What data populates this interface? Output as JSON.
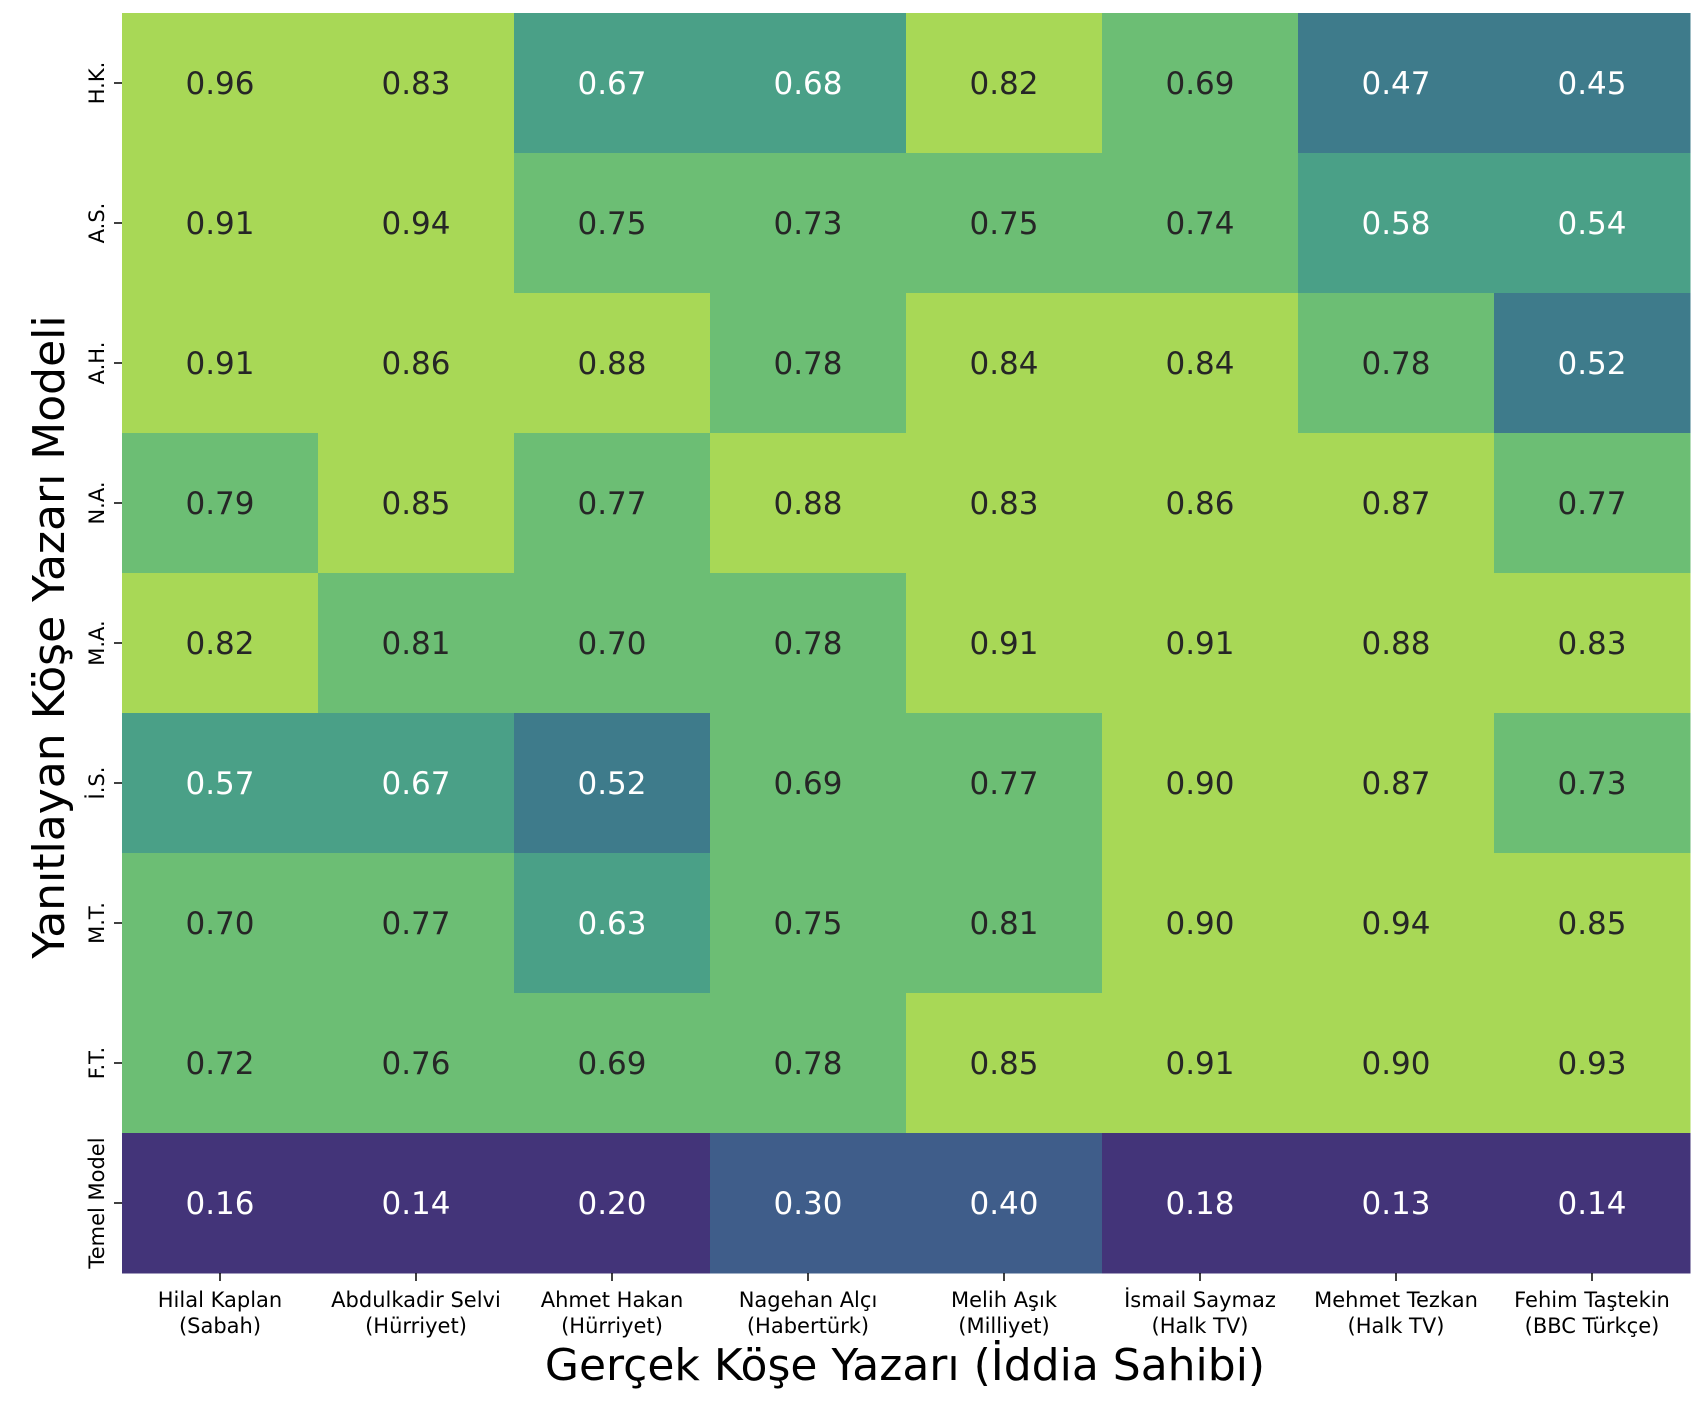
{
  "chart_data": {
    "type": "heatmap",
    "xlabel": "Gerçek Köşe Yazarı (İddia Sahibi)",
    "ylabel": "Yanıtlayan Köşe Yazarı Modeli",
    "x_categories": [
      [
        "Hilal Kaplan",
        "(Sabah)"
      ],
      [
        "Abdulkadir Selvi",
        "(Hürriyet)"
      ],
      [
        "Ahmet Hakan",
        "(Hürriyet)"
      ],
      [
        "Nagehan Alçı",
        "(Habertürk)"
      ],
      [
        "Melih Aşık",
        "(Milliyet)"
      ],
      [
        "İsmail Saymaz",
        "(Halk TV)"
      ],
      [
        "Mehmet Tezkan",
        "(Halk TV)"
      ],
      [
        "Fehim Taştekin",
        "(BBC Türkçe)"
      ]
    ],
    "y_categories": [
      "H.K.",
      "A.S.",
      "A.H.",
      "N.A.",
      "M.A.",
      "İ.S.",
      "M.T.",
      "F.T.",
      "Temel Model"
    ],
    "values": [
      [
        0.96,
        0.83,
        0.67,
        0.68,
        0.82,
        0.69,
        0.47,
        0.45
      ],
      [
        0.91,
        0.94,
        0.75,
        0.73,
        0.75,
        0.74,
        0.58,
        0.54
      ],
      [
        0.91,
        0.86,
        0.88,
        0.78,
        0.84,
        0.84,
        0.78,
        0.52
      ],
      [
        0.79,
        0.85,
        0.77,
        0.88,
        0.83,
        0.86,
        0.87,
        0.77
      ],
      [
        0.82,
        0.81,
        0.7,
        0.78,
        0.91,
        0.91,
        0.88,
        0.83
      ],
      [
        0.57,
        0.67,
        0.52,
        0.69,
        0.77,
        0.9,
        0.87,
        0.73
      ],
      [
        0.7,
        0.77,
        0.63,
        0.75,
        0.81,
        0.9,
        0.94,
        0.85
      ],
      [
        0.72,
        0.76,
        0.69,
        0.78,
        0.85,
        0.91,
        0.9,
        0.93
      ],
      [
        0.16,
        0.14,
        0.2,
        0.3,
        0.4,
        0.18,
        0.13,
        0.14
      ]
    ],
    "value_format": "2 decimals",
    "colormap": "viridis (binned)",
    "colors": {
      "very_high": "#a8d856",
      "high": "#6cbe74",
      "mid_high": "#4aa087",
      "mid": "#3e7b8b",
      "low": "#3f5d8a",
      "very_low": "#433479"
    },
    "text_colors": {
      "dark": "#262626",
      "light": "#ffffff"
    }
  }
}
